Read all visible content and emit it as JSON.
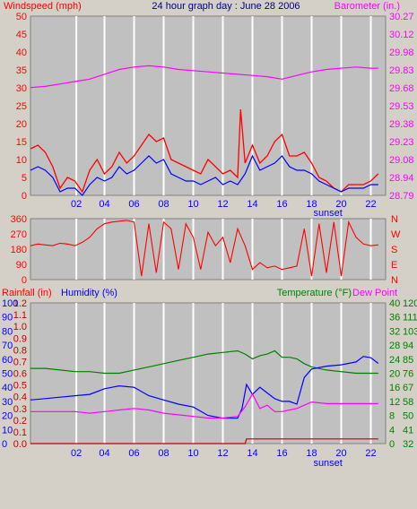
{
  "colors": {
    "background": "#d4d0c8",
    "plot_bg": "#c0c0c0",
    "grid": "#ffffff",
    "wind": "#ff0000",
    "gust_avg": "#0000ff",
    "barometer": "#ff00ff",
    "temperature": "#008000",
    "dewpoint": "#ff00ff",
    "humidity": "#0000ff",
    "rainfall": "#c00000",
    "title": "#000080"
  },
  "chart_data": [
    {
      "type": "line",
      "title": "24 hour graph day : June 28 2006",
      "ylabel_left": "Windspeed (mph)",
      "ylabel_right": "Barometer (in.)",
      "yticks_left": [
        "50",
        "45",
        "40",
        "35",
        "30",
        "25",
        "20",
        "15",
        "10",
        "5",
        "0"
      ],
      "yticks_right": [
        "30.27",
        "30.12",
        "29.98",
        "29.83",
        "29.68",
        "29.53",
        "29.38",
        "29.23",
        "29.08",
        "28.94",
        "28.79"
      ],
      "ylim_left": [
        0,
        50
      ],
      "ylim_right": [
        28.79,
        30.27
      ],
      "xlim": [
        0,
        24
      ],
      "xticks": [
        "02",
        "04",
        "06",
        "08",
        "10",
        "12",
        "14",
        "16",
        "18",
        "20",
        "22"
      ],
      "x_annotation": "sunset",
      "series": [
        {
          "key": "barometer",
          "axis": "right",
          "x": [
            0,
            1,
            2,
            3,
            4,
            5,
            6,
            7,
            8,
            9,
            10,
            11,
            12,
            13,
            14,
            15,
            16,
            17,
            18,
            19,
            20,
            21,
            22,
            23,
            23.5
          ],
          "values": [
            29.68,
            29.69,
            29.71,
            29.73,
            29.75,
            29.79,
            29.83,
            29.85,
            29.86,
            29.85,
            29.83,
            29.82,
            29.81,
            29.8,
            29.79,
            29.78,
            29.77,
            29.75,
            29.78,
            29.81,
            29.83,
            29.84,
            29.85,
            29.84,
            29.84
          ]
        },
        {
          "key": "wind",
          "axis": "left",
          "x": [
            0,
            0.5,
            1,
            1.5,
            2,
            2.5,
            3,
            3.5,
            4,
            4.5,
            5,
            5.5,
            6,
            6.5,
            7,
            7.5,
            8,
            8.5,
            9,
            9.5,
            10,
            10.5,
            11,
            11.5,
            12,
            12.5,
            13,
            13.5,
            14,
            14.2,
            14.5,
            15,
            15.5,
            16,
            16.5,
            17,
            17.5,
            18,
            18.5,
            19,
            19.5,
            20,
            20.5,
            21,
            21.5,
            22,
            22.5,
            23,
            23.5
          ],
          "values": [
            13,
            14,
            12,
            8,
            2,
            5,
            4,
            1,
            7,
            10,
            6,
            8,
            12,
            9,
            11,
            14,
            17,
            15,
            16,
            10,
            9,
            8,
            7,
            6,
            10,
            8,
            6,
            7,
            5,
            24,
            9,
            14,
            9,
            11,
            15,
            17,
            11,
            11,
            12,
            9,
            5,
            4,
            2,
            1,
            3,
            3,
            3,
            4,
            6
          ]
        },
        {
          "key": "gust_avg",
          "axis": "left",
          "x": [
            0,
            0.5,
            1,
            1.5,
            2,
            2.5,
            3,
            3.5,
            4,
            4.5,
            5,
            5.5,
            6,
            6.5,
            7,
            7.5,
            8,
            8.5,
            9,
            9.5,
            10,
            10.5,
            11,
            11.5,
            12,
            12.5,
            13,
            13.5,
            14,
            14.5,
            15,
            15.5,
            16,
            16.5,
            17,
            17.5,
            18,
            18.5,
            19,
            19.5,
            20,
            20.5,
            21,
            21.5,
            22,
            22.5,
            23,
            23.5
          ],
          "values": [
            7,
            8,
            7,
            5,
            1,
            2,
            2,
            0,
            3,
            5,
            4,
            5,
            8,
            6,
            7,
            9,
            11,
            9,
            10,
            6,
            5,
            4,
            4,
            3,
            4,
            5,
            3,
            4,
            3,
            6,
            11,
            7,
            8,
            9,
            11,
            8,
            7,
            7,
            6,
            4,
            3,
            2,
            1,
            2,
            2,
            2,
            3,
            3
          ]
        }
      ]
    },
    {
      "type": "line",
      "ylabel_left": "",
      "yticks_left": [
        "360",
        "270",
        "180",
        "90",
        "0"
      ],
      "yticks_right": [
        "N",
        "W",
        "S",
        "E",
        "N"
      ],
      "ylim_left": [
        0,
        360
      ],
      "xlim": [
        0,
        24
      ],
      "series": [
        {
          "key": "direction",
          "axis": "left",
          "x": [
            0,
            0.5,
            1,
            1.5,
            2,
            2.5,
            3,
            3.5,
            4,
            4.5,
            5,
            5.5,
            6,
            6.5,
            7,
            7.5,
            8,
            8.5,
            9,
            9.5,
            10,
            10.5,
            11,
            11.5,
            12,
            12.5,
            13,
            13.5,
            14,
            14.5,
            15,
            15.5,
            16,
            16.5,
            17,
            17.5,
            18,
            18.5,
            19,
            19.5,
            20,
            20.5,
            21,
            21.5,
            22,
            22.5,
            23,
            23.5
          ],
          "values": [
            200,
            210,
            205,
            200,
            215,
            210,
            200,
            220,
            250,
            300,
            330,
            340,
            345,
            350,
            340,
            20,
            330,
            40,
            340,
            300,
            60,
            330,
            250,
            60,
            280,
            200,
            250,
            100,
            300,
            200,
            60,
            100,
            70,
            80,
            60,
            70,
            80,
            300,
            20,
            330,
            40,
            340,
            20,
            340,
            250,
            210,
            200,
            205
          ]
        }
      ]
    },
    {
      "type": "line",
      "ylabel_left": "Rainfall (in)",
      "ylabel_humidity": "Humidity (%)",
      "ylabel_temp": "Temperature (°F)",
      "ylabel_dew": "Dew Point",
      "yticks_rain": [
        "1.2",
        "1.1",
        "1.0",
        "0.9",
        "0.8",
        "0.7",
        "0.6",
        "0.5",
        "0.4",
        "0.3",
        "0.2",
        "0.1",
        "0.0"
      ],
      "yticks_hum": [
        "100",
        "90",
        "80",
        "70",
        "60",
        "50",
        "40",
        "30",
        "20",
        "10",
        "0"
      ],
      "yticks_c": [
        "40",
        "36",
        "32",
        "28",
        "24",
        "20",
        "16",
        "12",
        "8",
        "4",
        "0"
      ],
      "yticks_f": [
        "120",
        "111",
        "103",
        "94",
        "85",
        "76",
        "67",
        "58",
        "50",
        "41",
        "32"
      ],
      "ylim_temp_f": [
        32,
        120
      ],
      "ylim_humidity": [
        0,
        100
      ],
      "ylim_rain": [
        0,
        1.2
      ],
      "xlim": [
        0,
        24
      ],
      "xticks": [
        "02",
        "04",
        "06",
        "08",
        "10",
        "12",
        "14",
        "16",
        "18",
        "20",
        "22"
      ],
      "x_annotation": "sunset",
      "series": [
        {
          "key": "temperature",
          "axis": "f",
          "x": [
            0,
            1,
            2,
            3,
            4,
            5,
            6,
            7,
            8,
            9,
            10,
            11,
            12,
            13,
            14,
            14.5,
            15,
            15.5,
            16,
            16.5,
            17,
            17.5,
            18,
            18.5,
            19,
            20,
            21,
            22,
            23,
            23.5
          ],
          "values": [
            79,
            79,
            78,
            77,
            77,
            76,
            76,
            78,
            80,
            82,
            84,
            86,
            88,
            89,
            90,
            88,
            85,
            87,
            88,
            90,
            86,
            86,
            85,
            82,
            80,
            78,
            77,
            76,
            76,
            76
          ]
        },
        {
          "key": "humidity",
          "axis": "hum",
          "x": [
            0,
            1,
            2,
            3,
            4,
            5,
            6,
            7,
            8,
            9,
            10,
            11,
            12,
            13,
            14,
            14.3,
            14.6,
            15,
            15.5,
            16,
            16.5,
            17,
            17.5,
            18,
            18.5,
            19,
            20,
            21,
            22,
            22.5,
            23,
            23.5
          ],
          "values": [
            31,
            32,
            33,
            34,
            35,
            39,
            41,
            40,
            34,
            31,
            28,
            26,
            20,
            18,
            18,
            25,
            42,
            35,
            40,
            36,
            32,
            30,
            30,
            28,
            47,
            53,
            55,
            56,
            58,
            62,
            61,
            57
          ]
        },
        {
          "key": "dewpoint",
          "axis": "f",
          "x": [
            0,
            1,
            2,
            3,
            4,
            5,
            6,
            7,
            8,
            9,
            10,
            11,
            12,
            13,
            14,
            14.5,
            15,
            15.5,
            16,
            16.5,
            17,
            17.5,
            18,
            18.5,
            19,
            20,
            21,
            22,
            23,
            23.5
          ],
          "values": [
            52,
            52,
            52,
            52,
            51,
            52,
            53,
            54,
            53,
            51,
            50,
            49,
            48,
            48,
            49,
            55,
            63,
            54,
            56,
            52,
            52,
            53,
            54,
            56,
            58,
            57,
            57,
            57,
            57,
            57
          ]
        },
        {
          "key": "rainfall",
          "axis": "rain",
          "x": [
            0,
            14.5,
            14.6,
            23.5
          ],
          "values": [
            0,
            0,
            0.04,
            0.04
          ]
        }
      ]
    }
  ]
}
